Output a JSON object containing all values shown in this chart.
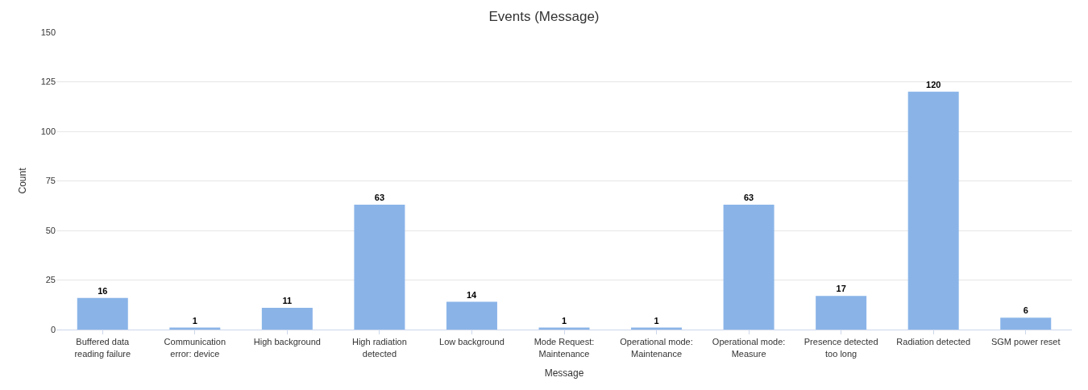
{
  "chart_data": {
    "type": "bar",
    "title": "Events (Message)",
    "xlabel": "Message",
    "ylabel": "Count",
    "categories": [
      "Buffered data reading failure",
      "Communication error: device",
      "High background",
      "High radiation detected",
      "Low background",
      "Mode Request: Maintenance",
      "Operational mode: Maintenance",
      "Operational mode: Measure",
      "Presence detected too long",
      "Radiation detected",
      "SGM power reset"
    ],
    "values": [
      16,
      1,
      11,
      63,
      14,
      1,
      1,
      63,
      17,
      120,
      6
    ],
    "color": "#8ab4e8",
    "ylim": [
      0,
      150
    ],
    "yticks": [
      0,
      25,
      50,
      75,
      100,
      125,
      150
    ],
    "grid": "y",
    "data_labels": true,
    "legend": false
  }
}
